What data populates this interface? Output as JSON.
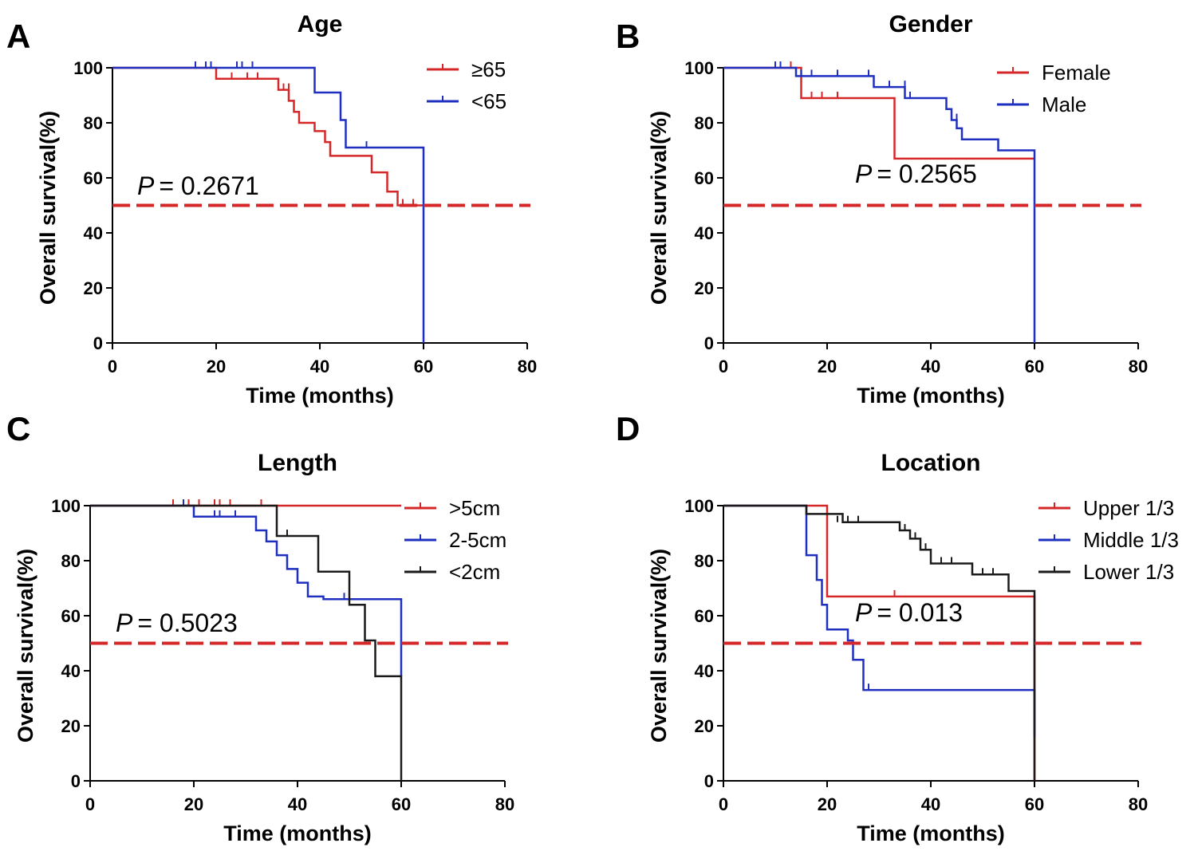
{
  "chart_data": [
    {
      "panel": "A",
      "type": "line",
      "subtype": "kaplan-meier",
      "title": "Age",
      "xlabel": "Time (months)",
      "ylabel": "Overall survival(%)",
      "xlim": [
        0,
        80
      ],
      "ylim": [
        0,
        100
      ],
      "xticks": [
        "0",
        "20",
        "40",
        "60",
        "80"
      ],
      "yticks": [
        "0",
        "20",
        "40",
        "60",
        "80",
        "100"
      ],
      "p_prefix": "P",
      "p_value": "= 0.2671",
      "reference_line_y": 50,
      "legend": "top-right",
      "series": [
        {
          "name": "≥65",
          "color": "#d62728",
          "x": [
            0,
            20,
            32,
            34,
            35,
            36,
            39,
            41,
            42,
            50,
            53,
            55,
            60
          ],
          "y": [
            100,
            96,
            92,
            88,
            84,
            80,
            77,
            73,
            68,
            62,
            55,
            50,
            50
          ],
          "censored": [
            [
              20,
              96
            ],
            [
              23,
              96
            ],
            [
              26,
              96
            ],
            [
              28,
              96
            ],
            [
              32,
              92
            ],
            [
              33,
              92
            ],
            [
              34,
              92
            ],
            [
              56,
              50
            ],
            [
              58,
              50
            ]
          ]
        },
        {
          "name": "<65",
          "color": "#1f2fbf",
          "x": [
            0,
            39,
            44,
            45,
            60,
            60
          ],
          "y": [
            100,
            91,
            81,
            71,
            71,
            0
          ],
          "censored": [
            [
              16,
              100
            ],
            [
              18,
              100
            ],
            [
              19,
              100
            ],
            [
              24,
              100
            ],
            [
              25,
              100
            ],
            [
              27,
              100
            ],
            [
              45,
              71
            ],
            [
              49,
              71
            ]
          ]
        }
      ]
    },
    {
      "panel": "B",
      "type": "line",
      "subtype": "kaplan-meier",
      "title": "Gender",
      "xlabel": "Time (months)",
      "ylabel": "Overall survival(%)",
      "xlim": [
        0,
        80
      ],
      "ylim": [
        0,
        100
      ],
      "xticks": [
        "0",
        "20",
        "40",
        "60",
        "80"
      ],
      "yticks": [
        "0",
        "20",
        "40",
        "60",
        "80",
        "100"
      ],
      "p_prefix": "P",
      "p_value": "= 0.2565",
      "reference_line_y": 50,
      "legend": "top-right",
      "series": [
        {
          "name": "Female",
          "color": "#d62728",
          "x": [
            0,
            15,
            33,
            60
          ],
          "y": [
            100,
            89,
            67,
            67
          ],
          "censored": [
            [
              13,
              100
            ],
            [
              17,
              89
            ],
            [
              19,
              89
            ],
            [
              22,
              89
            ]
          ]
        },
        {
          "name": "Male",
          "color": "#1f2fbf",
          "x": [
            0,
            14,
            29,
            35,
            43,
            44,
            45,
            46,
            53,
            60,
            60
          ],
          "y": [
            100,
            97,
            93,
            89,
            85,
            81,
            78,
            74,
            70,
            70,
            0
          ],
          "censored": [
            [
              10,
              100
            ],
            [
              11,
              100
            ],
            [
              15,
              97
            ],
            [
              17,
              97
            ],
            [
              22,
              97
            ],
            [
              28,
              97
            ],
            [
              32,
              93
            ],
            [
              35,
              93
            ],
            [
              36,
              89
            ],
            [
              45,
              81
            ]
          ]
        }
      ]
    },
    {
      "panel": "C",
      "type": "line",
      "subtype": "kaplan-meier",
      "title": "Length",
      "xlabel": "Time (months)",
      "ylabel": "Overall survival(%)",
      "xlim": [
        0,
        80
      ],
      "ylim": [
        0,
        100
      ],
      "xticks": [
        "0",
        "20",
        "40",
        "60",
        "80"
      ],
      "yticks": [
        "0",
        "20",
        "40",
        "60",
        "80",
        "100"
      ],
      "p_prefix": "P",
      "p_value": "= 0.5023",
      "reference_line_y": 50,
      "legend": "top-right",
      "series": [
        {
          "name": ">5cm",
          "color": "#d62728",
          "x": [
            0,
            60
          ],
          "y": [
            100,
            100
          ],
          "censored": [
            [
              16,
              100
            ],
            [
              19,
              100
            ],
            [
              21,
              100
            ],
            [
              24,
              100
            ],
            [
              25,
              100
            ],
            [
              27,
              100
            ],
            [
              33,
              100
            ]
          ]
        },
        {
          "name": "2-5cm",
          "color": "#1f2fbf",
          "x": [
            0,
            20,
            32,
            34,
            36,
            38,
            40,
            42,
            45,
            60,
            60
          ],
          "y": [
            100,
            96,
            91,
            87,
            82,
            77,
            72,
            67,
            66,
            66,
            38
          ],
          "censored": [
            [
              18,
              100
            ],
            [
              24,
              96
            ],
            [
              25,
              96
            ],
            [
              28,
              96
            ],
            [
              49,
              66
            ]
          ]
        },
        {
          "name": "<2cm",
          "color": "#1a1a1a",
          "x": [
            0,
            36,
            44,
            50,
            53,
            55,
            60,
            60
          ],
          "y": [
            100,
            89,
            76,
            64,
            51,
            38,
            38,
            0
          ],
          "censored": [
            [
              38,
              89
            ]
          ]
        }
      ]
    },
    {
      "panel": "D",
      "type": "line",
      "subtype": "kaplan-meier",
      "title": "Location",
      "xlabel": "Time (months)",
      "ylabel": "Overall survival(%)",
      "xlim": [
        0,
        80
      ],
      "ylim": [
        0,
        100
      ],
      "xticks": [
        "0",
        "20",
        "40",
        "60",
        "80"
      ],
      "yticks": [
        "0",
        "20",
        "40",
        "60",
        "80",
        "100"
      ],
      "p_prefix": "P",
      "p_value": "= 0.013",
      "reference_line_y": 50,
      "legend": "top-right",
      "series": [
        {
          "name": "Upper 1/3",
          "color": "#d62728",
          "x": [
            0,
            20,
            60,
            60
          ],
          "y": [
            100,
            67,
            67,
            0
          ],
          "censored": [
            [
              33,
              67
            ]
          ]
        },
        {
          "name": "Middle 1/3",
          "color": "#1f2fbf",
          "x": [
            0,
            16,
            18,
            19,
            20,
            24,
            25,
            27,
            60,
            60
          ],
          "y": [
            100,
            82,
            73,
            64,
            55,
            51,
            44,
            33,
            33,
            16
          ],
          "censored": [
            [
              28,
              33
            ]
          ]
        },
        {
          "name": "Lower 1/3",
          "color": "#1a1a1a",
          "x": [
            0,
            16,
            23,
            34,
            36,
            38,
            40,
            48,
            55,
            60,
            60
          ],
          "y": [
            100,
            97,
            94,
            91,
            88,
            84,
            79,
            75,
            69,
            69,
            0
          ],
          "censored": [
            [
              22,
              94
            ],
            [
              24,
              94
            ],
            [
              26,
              94
            ],
            [
              35,
              91
            ],
            [
              37,
              88
            ],
            [
              39,
              84
            ],
            [
              42,
              79
            ],
            [
              44,
              79
            ],
            [
              50,
              75
            ],
            [
              52,
              75
            ]
          ]
        }
      ]
    }
  ]
}
